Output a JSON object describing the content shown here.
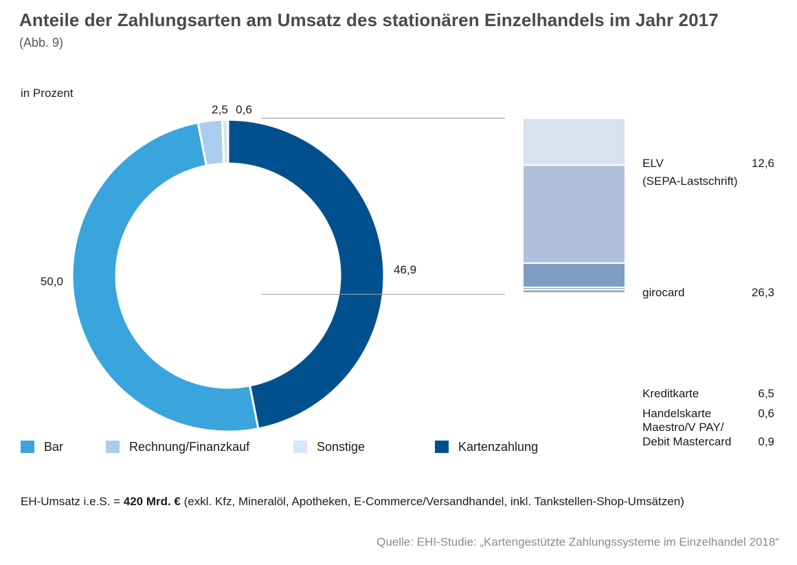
{
  "title": "Anteile der Zahlungsarten am Umsatz des stationären Einzelhandels im Jahr 2017",
  "subtitle": "(Abb. 9)",
  "unit_label": "in Prozent",
  "chart_data": [
    {
      "type": "pie",
      "variant": "donut",
      "title": "",
      "slices": [
        {
          "label": "Bar",
          "value": 50.0,
          "value_label": "50,0",
          "color": "#3aa4dc"
        },
        {
          "label": "Rechnung/Finanzkauf",
          "value": 2.5,
          "value_label": "2,5",
          "color": "#a9cdee"
        },
        {
          "label": "Sonstige",
          "value": 0.6,
          "value_label": "0,6",
          "color": "#d6e6f7"
        },
        {
          "label": "Kartenzahlung",
          "value": 46.9,
          "value_label": "46,9",
          "color": "#00508e"
        }
      ],
      "legend_placement": "bottom-left"
    },
    {
      "type": "bar",
      "variant": "stacked-breakdown",
      "title": "",
      "breakdown_of": "Kartenzahlung",
      "segments": [
        {
          "label": "ELV",
          "label_line2": "(SEPA-Lastschrift)",
          "value": 12.6,
          "value_label": "12,6",
          "color": "#d9e1f0"
        },
        {
          "label": "girocard",
          "value": 26.3,
          "value_label": "26,3",
          "color": "#aec0dc"
        },
        {
          "label": "Kreditkarte",
          "value": 6.5,
          "value_label": "6,5",
          "color": "#7e9dc5"
        },
        {
          "label": "Handelskarte",
          "value": 0.6,
          "value_label": "0,6",
          "color": "#7e9dc5"
        },
        {
          "label": "Maestro/V PAY/",
          "label_line2": "Debit Mastercard",
          "value": 0.9,
          "value_label": "0,9",
          "color": "#a8a8a8"
        }
      ]
    }
  ],
  "footnote": {
    "prefix": "EH-Umsatz i.e.S. = ",
    "bold": "420 Mrd. €",
    "suffix": " (exkl. Kfz, Mineralöl, Apotheken, E-Commerce/Versandhandel, inkl. Tankstellen-Shop-Umsätzen)"
  },
  "source": "Quelle: EHI-Studie: „Kartengestützte Zahlungssysteme im Einzelhandel 2018“"
}
